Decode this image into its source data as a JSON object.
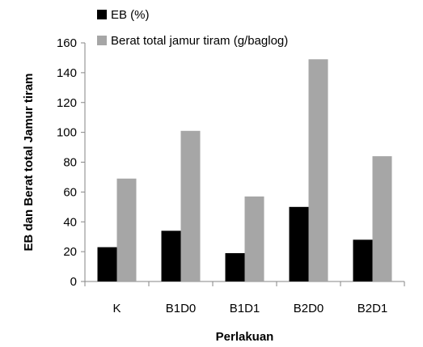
{
  "chart_data": {
    "type": "bar",
    "categories": [
      "K",
      "B1D0",
      "B1D1",
      "B2D0",
      "B2D1"
    ],
    "series": [
      {
        "name": "EB (%)",
        "color": "#000000",
        "values": [
          23,
          34,
          19,
          50,
          28
        ]
      },
      {
        "name": "Berat total jamur tiram (g/baglog)",
        "color": "#a6a6a6",
        "values": [
          69,
          101,
          57,
          149,
          84
        ]
      }
    ],
    "xlabel": "Perlakuan",
    "ylabel": "EB dan Berat total Jamur tiram",
    "ylim": [
      0,
      160
    ],
    "yticks": [
      0,
      20,
      40,
      60,
      80,
      100,
      120,
      140,
      160
    ],
    "grid": false,
    "legend": "top"
  }
}
